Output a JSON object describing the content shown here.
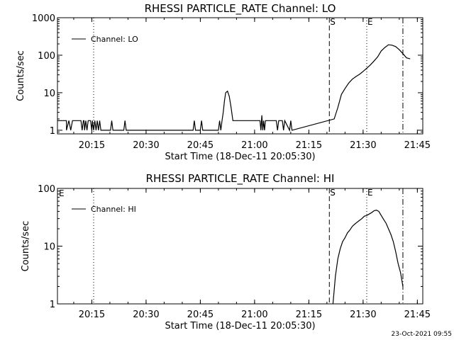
{
  "footer": {
    "stamp": "23-Oct-2021 09:55"
  },
  "chart_data": [
    {
      "type": "line",
      "title": "RHESSI PARTICLE_RATE Channel: LO",
      "xlabel": "Start Time (18-Dec-11 20:05:30)",
      "ylabel": "Counts/sec",
      "y_scale": "log",
      "ylim": [
        0.8,
        1000
      ],
      "xlim": [
        "20:05:30",
        "21:46:30"
      ],
      "x_ticks": [
        "20:15",
        "20:30",
        "20:45",
        "21:00",
        "21:15",
        "21:30",
        "21:45"
      ],
      "y_ticks": [
        "1",
        "10",
        "100",
        "1000"
      ],
      "legend": {
        "position": "top-left",
        "entries": [
          "Channel: LO"
        ]
      },
      "series": [
        {
          "name": "Channel: LO",
          "x": [
            "20:05:30",
            "20:08:00",
            "20:08:00",
            "20:08:40",
            "20:09:10",
            "20:09:40",
            "20:09:40",
            "20:12:00",
            "20:12:20",
            "20:12:40",
            "20:12:50",
            "20:13:00",
            "20:13:20",
            "20:13:40",
            "20:14:00",
            "20:14:40",
            "20:15:00",
            "20:15:10",
            "20:15:30",
            "20:15:50",
            "20:16:10",
            "20:16:30",
            "20:16:50",
            "20:17:10",
            "20:17:30",
            "20:17:50",
            "20:20:10",
            "20:20:30",
            "20:20:50",
            "20:23:50",
            "20:24:10",
            "20:24:30",
            "20:43:00",
            "20:43:20",
            "20:43:40",
            "20:45:00",
            "20:45:20",
            "20:45:40",
            "20:50:00",
            "20:50:20",
            "20:50:40",
            "20:51:00",
            "20:51:20",
            "20:51:40",
            "20:52:00",
            "20:52:30",
            "20:53:00",
            "20:53:30",
            "20:54:00",
            "20:54:30",
            "20:55:00",
            "20:55:30",
            "20:56:00",
            "21:01:30",
            "21:01:45",
            "21:02:00",
            "21:02:15",
            "21:02:30",
            "21:02:45",
            "21:03:00",
            "21:06:00",
            "21:06:20",
            "21:06:40",
            "21:07:40",
            "21:08:00",
            "21:08:20",
            "21:09:40",
            "21:10:00",
            "21:10:20",
            "21:22:00",
            "21:23:00",
            "21:24:00",
            "21:25:00",
            "21:26:00",
            "21:27:00",
            "21:28:00",
            "21:29:00",
            "21:30:00",
            "21:31:00",
            "21:32:00",
            "21:33:00",
            "21:34:00",
            "21:35:00",
            "21:36:00",
            "21:37:00",
            "21:38:00",
            "21:39:00",
            "21:40:00",
            "21:41:00",
            "21:42:00",
            "21:43:00"
          ],
          "y": [
            1.8,
            1.8,
            1,
            1.8,
            1,
            1.8,
            1.8,
            1.8,
            1,
            1.8,
            1.8,
            1,
            1.8,
            1,
            1.8,
            1.8,
            1,
            1.8,
            1,
            1.8,
            1,
            1.8,
            1,
            1.8,
            1,
            1,
            1,
            1.8,
            1,
            1,
            1.8,
            1,
            1,
            1.8,
            1,
            1,
            1.8,
            1,
            1,
            1.8,
            1,
            1.8,
            3,
            6,
            10,
            11,
            8,
            4,
            1.8,
            1.8,
            1.8,
            1.8,
            1.8,
            1.8,
            1,
            2.5,
            1,
            1.8,
            1,
            1.8,
            1.8,
            1,
            1.8,
            1.8,
            1,
            1.8,
            1,
            1.8,
            1,
            2,
            4,
            9,
            13,
            18,
            23,
            27,
            31,
            37,
            45,
            55,
            70,
            90,
            130,
            160,
            190,
            185,
            170,
            140,
            110,
            85,
            80
          ]
        }
      ],
      "markers": [
        {
          "time": "20:15:30",
          "label": "",
          "style": "dotted"
        },
        {
          "time": "21:20:40",
          "label": "S",
          "style": "dashed"
        },
        {
          "time": "21:31:00",
          "label": "E",
          "style": "dotted"
        },
        {
          "time": "21:41:00",
          "label": "",
          "style": "dashdot"
        }
      ]
    },
    {
      "type": "line",
      "title": "RHESSI PARTICLE_RATE Channel: HI",
      "xlabel": "Start Time (18-Dec-11 20:05:30)",
      "ylabel": "Counts/sec",
      "y_scale": "log",
      "ylim": [
        1,
        100
      ],
      "xlim": [
        "20:05:30",
        "21:46:30"
      ],
      "x_ticks": [
        "20:15",
        "20:30",
        "20:45",
        "21:00",
        "21:15",
        "21:30",
        "21:45"
      ],
      "y_ticks": [
        "1",
        "10",
        "100"
      ],
      "legend": {
        "position": "top-left",
        "entries": [
          "Channel: HI"
        ]
      },
      "series": [
        {
          "name": "Channel: HI",
          "x": [
            "21:21:40",
            "21:22:20",
            "21:23:00",
            "21:23:40",
            "21:24:20",
            "21:25:00",
            "21:25:40",
            "21:26:20",
            "21:27:00",
            "21:27:40",
            "21:28:20",
            "21:29:00",
            "21:29:40",
            "21:30:20",
            "21:31:00",
            "21:31:40",
            "21:32:20",
            "21:33:00",
            "21:33:40",
            "21:34:20",
            "21:35:00",
            "21:35:40",
            "21:36:20",
            "21:37:00",
            "21:37:40",
            "21:38:20",
            "21:39:00",
            "21:39:40",
            "21:40:20",
            "21:41:00"
          ],
          "y": [
            1,
            3,
            6,
            9,
            12,
            14,
            17,
            19,
            22,
            24,
            26,
            28,
            30,
            33,
            34,
            36,
            38,
            41,
            42,
            40,
            34,
            29,
            25,
            20,
            16,
            12,
            8,
            5,
            3.5,
            2
          ]
        }
      ],
      "markers": [
        {
          "time": "20:15:30",
          "label": "",
          "style": "dotted"
        },
        {
          "time": "21:20:40",
          "label": "S",
          "style": "dashed"
        },
        {
          "time": "21:31:00",
          "label": "E",
          "style": "dotted"
        },
        {
          "time": "21:41:00",
          "label": "",
          "style": "dashdot"
        }
      ],
      "corner_label": "E"
    }
  ]
}
